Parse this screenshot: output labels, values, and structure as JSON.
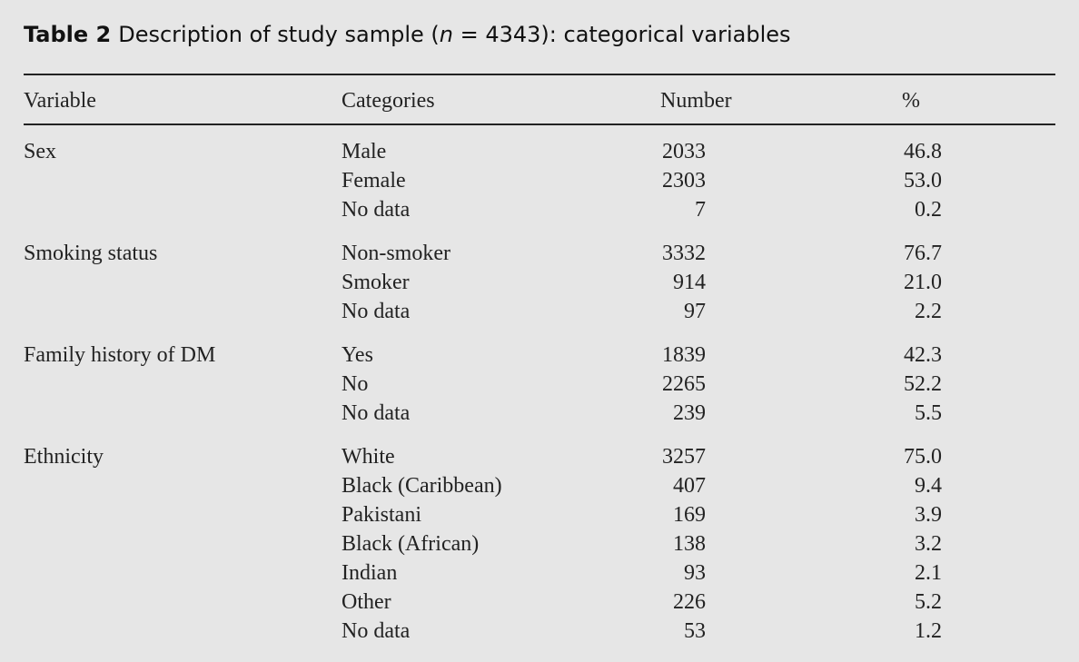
{
  "title": {
    "label": "Table 2",
    "before": "Description of study sample (",
    "italic": "n",
    "after": " = 4343): categorical variables"
  },
  "header": [
    "Variable",
    "Categories",
    "Number",
    "%"
  ],
  "groups": [
    {
      "variable": "Sex",
      "rows": [
        [
          "Male",
          "2033",
          "46.8"
        ],
        [
          "Female",
          "2303",
          "53.0"
        ],
        [
          "No data",
          "7",
          "0.2"
        ]
      ]
    },
    {
      "variable": "Smoking status",
      "rows": [
        [
          "Non-smoker",
          "3332",
          "76.7"
        ],
        [
          "Smoker",
          "914",
          "21.0"
        ],
        [
          "No data",
          "97",
          "2.2"
        ]
      ]
    },
    {
      "variable": "Family history of DM",
      "rows": [
        [
          "Yes",
          "1839",
          "42.3"
        ],
        [
          "No",
          "2265",
          "52.2"
        ],
        [
          "No data",
          "239",
          "5.5"
        ]
      ]
    },
    {
      "variable": "Ethnicity",
      "rows": [
        [
          "White",
          "3257",
          "75.0"
        ],
        [
          "Black (Caribbean)",
          "407",
          "9.4"
        ],
        [
          "Pakistani",
          "169",
          "3.9"
        ],
        [
          "Black (African)",
          "138",
          "3.2"
        ],
        [
          "Indian",
          "93",
          "2.1"
        ],
        [
          "Other",
          "226",
          "5.2"
        ],
        [
          "No data",
          "53",
          "1.2"
        ]
      ]
    }
  ]
}
